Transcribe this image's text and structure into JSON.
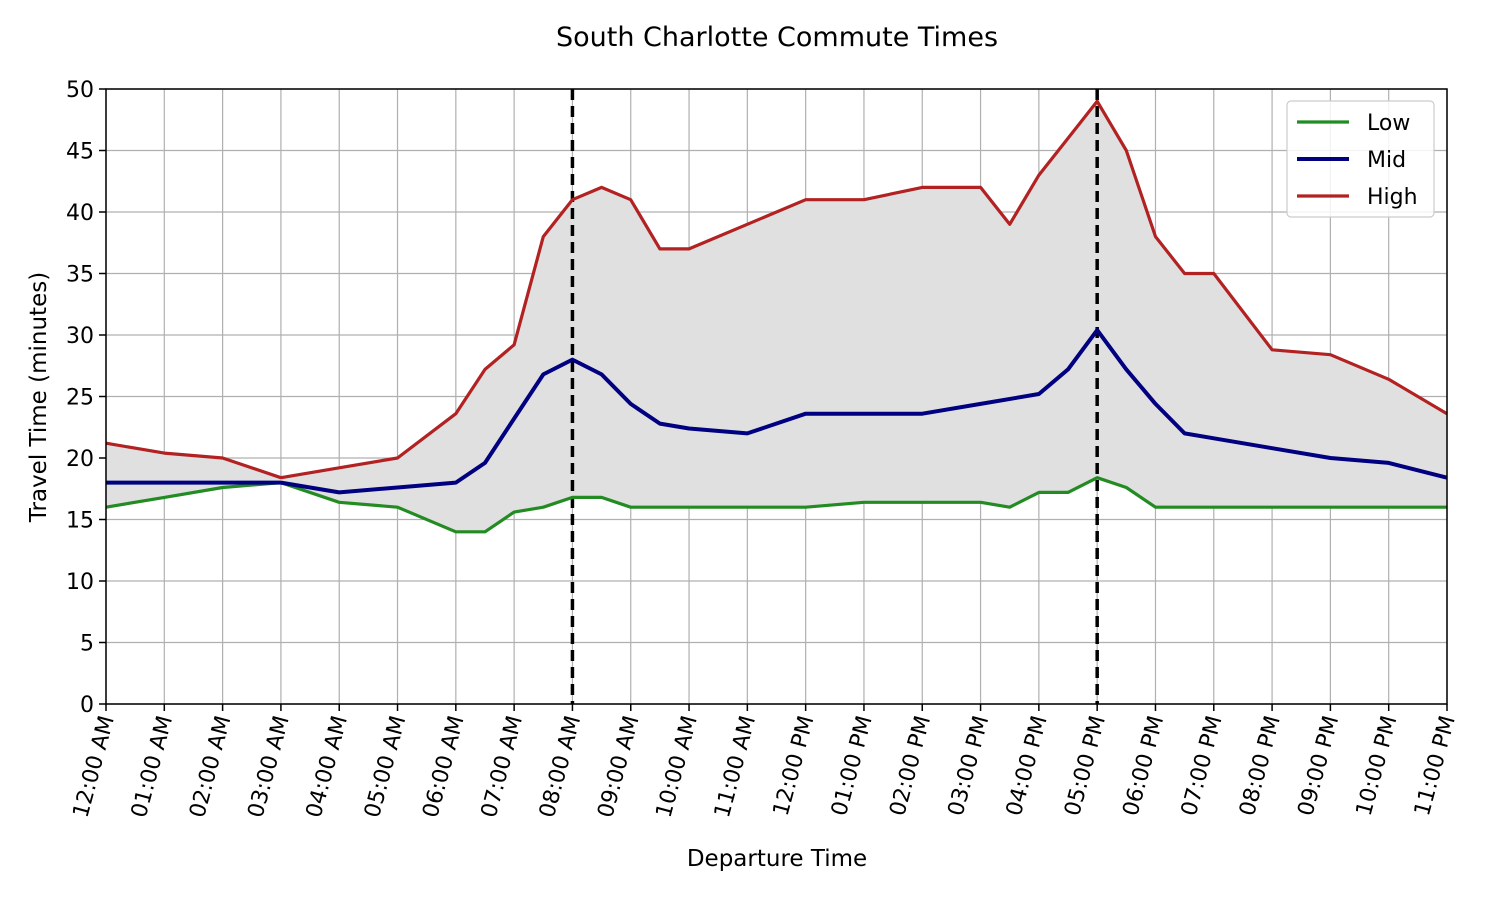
{
  "chart_data": {
    "type": "line",
    "title": "South Charlotte Commute Times",
    "xlabel": "Departure Time",
    "ylabel": "Travel Time (minutes)",
    "ylim": [
      0,
      50
    ],
    "yticks": [
      0,
      5,
      10,
      15,
      20,
      25,
      30,
      35,
      40,
      45,
      50
    ],
    "xlim": [
      0,
      23
    ],
    "xticks": [
      {
        "hour": 0,
        "label": "12:00 AM"
      },
      {
        "hour": 1,
        "label": "01:00 AM"
      },
      {
        "hour": 2,
        "label": "02:00 AM"
      },
      {
        "hour": 3,
        "label": "03:00 AM"
      },
      {
        "hour": 4,
        "label": "04:00 AM"
      },
      {
        "hour": 5,
        "label": "05:00 AM"
      },
      {
        "hour": 6,
        "label": "06:00 AM"
      },
      {
        "hour": 7,
        "label": "07:00 AM"
      },
      {
        "hour": 8,
        "label": "08:00 AM"
      },
      {
        "hour": 9,
        "label": "09:00 AM"
      },
      {
        "hour": 10,
        "label": "10:00 AM"
      },
      {
        "hour": 11,
        "label": "11:00 AM"
      },
      {
        "hour": 12,
        "label": "12:00 PM"
      },
      {
        "hour": 13,
        "label": "01:00 PM"
      },
      {
        "hour": 14,
        "label": "02:00 PM"
      },
      {
        "hour": 15,
        "label": "03:00 PM"
      },
      {
        "hour": 16,
        "label": "04:00 PM"
      },
      {
        "hour": 17,
        "label": "05:00 PM"
      },
      {
        "hour": 18,
        "label": "06:00 PM"
      },
      {
        "hour": 19,
        "label": "07:00 PM"
      },
      {
        "hour": 20,
        "label": "08:00 PM"
      },
      {
        "hour": 21,
        "label": "09:00 PM"
      },
      {
        "hour": 22,
        "label": "10:00 PM"
      },
      {
        "hour": 23,
        "label": "11:00 PM"
      }
    ],
    "grid": true,
    "legend_position": "upper right",
    "range_fill": {
      "between": [
        "Low",
        "High"
      ],
      "color": "#e0e0e0"
    },
    "vertical_markers": [
      {
        "hour": 8,
        "style": "dashed",
        "color": "#000000"
      },
      {
        "hour": 17,
        "style": "dashed",
        "color": "#000000"
      }
    ],
    "series": [
      {
        "name": "Low",
        "color": "#228b22",
        "points": [
          [
            0,
            16
          ],
          [
            1,
            16.8
          ],
          [
            2,
            17.6
          ],
          [
            3,
            18
          ],
          [
            4,
            16.4
          ],
          [
            5,
            16
          ],
          [
            6,
            14
          ],
          [
            6.5,
            14
          ],
          [
            7,
            15.6
          ],
          [
            7.5,
            16
          ],
          [
            8,
            16.8
          ],
          [
            8.5,
            16.8
          ],
          [
            9,
            16
          ],
          [
            10,
            16
          ],
          [
            11,
            16
          ],
          [
            12,
            16
          ],
          [
            13,
            16.4
          ],
          [
            14,
            16.4
          ],
          [
            15,
            16.4
          ],
          [
            15.5,
            16
          ],
          [
            16,
            17.2
          ],
          [
            16.5,
            17.2
          ],
          [
            17,
            18.4
          ],
          [
            17.5,
            17.6
          ],
          [
            18,
            16
          ],
          [
            19,
            16
          ],
          [
            20,
            16
          ],
          [
            21,
            16
          ],
          [
            22,
            16
          ],
          [
            23,
            16
          ]
        ]
      },
      {
        "name": "Mid",
        "color": "#000080",
        "points": [
          [
            0,
            18
          ],
          [
            1,
            18
          ],
          [
            2,
            18
          ],
          [
            3,
            18
          ],
          [
            4,
            17.2
          ],
          [
            5,
            17.6
          ],
          [
            6,
            18
          ],
          [
            6.5,
            19.6
          ],
          [
            7,
            23.2
          ],
          [
            7.5,
            26.8
          ],
          [
            8,
            28
          ],
          [
            8.5,
            26.8
          ],
          [
            9,
            24.4
          ],
          [
            9.5,
            22.8
          ],
          [
            10,
            22.4
          ],
          [
            11,
            22
          ],
          [
            12,
            23.6
          ],
          [
            13,
            23.6
          ],
          [
            14,
            23.6
          ],
          [
            15,
            24.4
          ],
          [
            16,
            25.2
          ],
          [
            16.5,
            27.2
          ],
          [
            17,
            30.4
          ],
          [
            17.5,
            27.2
          ],
          [
            18,
            24.4
          ],
          [
            18.5,
            22
          ],
          [
            19,
            21.6
          ],
          [
            20,
            20.8
          ],
          [
            21,
            20
          ],
          [
            22,
            19.6
          ],
          [
            23,
            18.4
          ]
        ]
      },
      {
        "name": "High",
        "color": "#b22222",
        "points": [
          [
            0,
            21.2
          ],
          [
            1,
            20.4
          ],
          [
            2,
            20
          ],
          [
            3,
            18.4
          ],
          [
            4,
            19.2
          ],
          [
            5,
            20
          ],
          [
            6,
            23.6
          ],
          [
            6.5,
            27.2
          ],
          [
            7,
            29.2
          ],
          [
            7.5,
            38
          ],
          [
            8,
            41
          ],
          [
            8.5,
            42
          ],
          [
            9,
            41
          ],
          [
            9.5,
            37
          ],
          [
            10,
            37
          ],
          [
            11,
            39
          ],
          [
            12,
            41
          ],
          [
            13,
            41
          ],
          [
            14,
            42
          ],
          [
            15,
            42
          ],
          [
            15.5,
            39
          ],
          [
            16,
            43
          ],
          [
            17,
            49
          ],
          [
            17.5,
            45
          ],
          [
            18,
            38
          ],
          [
            18.5,
            35
          ],
          [
            19,
            35
          ],
          [
            20,
            28.8
          ],
          [
            21,
            28.4
          ],
          [
            22,
            26.4
          ],
          [
            23,
            23.6
          ]
        ]
      }
    ]
  }
}
